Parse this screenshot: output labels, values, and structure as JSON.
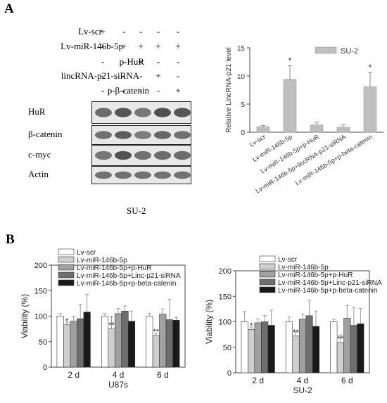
{
  "panel_a": {
    "letter": "A",
    "treatments": [
      {
        "label": "Lv-scr",
        "signs": [
          "+",
          "-",
          "-",
          "-",
          "-"
        ]
      },
      {
        "label": "Lv-miR-146b-5p",
        "signs": [
          "-",
          "+",
          "+",
          "+",
          "+"
        ]
      },
      {
        "label": "p-HuR",
        "signs": [
          "-",
          "-",
          "+",
          "-",
          "-"
        ]
      },
      {
        "label": "lincRNA-p21-siRNA",
        "signs": [
          "-",
          "-",
          "-",
          "+",
          "-"
        ]
      },
      {
        "label": "p-β-catenin",
        "signs": [
          "-",
          "-",
          "-",
          "-",
          "+"
        ]
      }
    ],
    "blots": [
      {
        "label": "HuR",
        "intensity": [
          0.55,
          0.75,
          0.45,
          0.8,
          0.75
        ]
      },
      {
        "label": "β-catenin",
        "intensity": [
          0.5,
          0.7,
          0.4,
          0.6,
          0.5
        ]
      },
      {
        "label": "c-myc",
        "intensity": [
          0.45,
          0.8,
          0.5,
          0.55,
          0.55
        ]
      },
      {
        "label": "Actin",
        "intensity": [
          0.5,
          0.5,
          0.5,
          0.5,
          0.5
        ]
      }
    ],
    "cell_line": "SU-2"
  },
  "panel_b": {
    "letter": "B"
  },
  "chart_data": [
    {
      "type": "bar",
      "id": "lincrna-p21",
      "title": "",
      "ylabel": "Relative LincRNA-p21 level",
      "ylim": [
        0,
        15
      ],
      "yticks": [
        "0",
        "5",
        "10",
        "15"
      ],
      "categories": [
        "Lv-scr",
        "Lv-miR-146b-5p",
        "Lv-miR-146b-5p+p-HuR",
        "Lv-miR-146b-5p+lincRNA-p21-siRNA",
        "Lv-miR-146b-5p+p-beta-catenin"
      ],
      "series": [
        {
          "name": "SU-2",
          "values": [
            1.0,
            9.4,
            1.3,
            0.9,
            8.1
          ],
          "errors": [
            0.2,
            2.4,
            0.5,
            0.4,
            2.5
          ]
        }
      ],
      "annotations": [
        "",
        "*",
        "",
        "",
        "*"
      ],
      "legend": "top-right"
    },
    {
      "type": "bar",
      "id": "viability-u87s",
      "title": "",
      "xlabel": "U87s",
      "ylabel": "Viability (%)",
      "ylim": [
        0,
        200
      ],
      "yticks": [
        "0",
        "50",
        "100",
        "150",
        "200"
      ],
      "categories": [
        "2 d",
        "4 d",
        "6 d"
      ],
      "series": [
        {
          "name": "Lv-scr",
          "values": [
            100,
            100,
            100
          ],
          "errors": [
            5,
            5,
            5
          ]
        },
        {
          "name": "Lv-miR-146b-5p",
          "values": [
            83,
            75,
            62
          ],
          "errors": [
            5,
            25,
            4
          ]
        },
        {
          "name": "Lv-miR-146b-5p+p-HuR",
          "values": [
            90,
            105,
            104
          ],
          "errors": [
            10,
            10,
            10
          ]
        },
        {
          "name": "Lv-miR-146b-5p+Linc-p21-siRNA",
          "values": [
            95,
            110,
            93
          ],
          "errors": [
            28,
            10,
            40
          ]
        },
        {
          "name": "Lv-miR-146b-5p+p-beta-catenin",
          "values": [
            108,
            90,
            92
          ],
          "errors": [
            35,
            20,
            5
          ]
        }
      ],
      "annotations": [
        [
          "",
          "*",
          "",
          "",
          ""
        ],
        [
          "",
          "**",
          "",
          "",
          ""
        ],
        [
          "",
          "**",
          "",
          "",
          ""
        ]
      ],
      "legend": "top-left"
    },
    {
      "type": "bar",
      "id": "viability-su2",
      "title": "",
      "xlabel": "SU-2",
      "ylabel": "Viability (%)",
      "ylim": [
        0,
        200
      ],
      "yticks": [
        "0",
        "50",
        "100",
        "150",
        "200"
      ],
      "categories": [
        "2 d",
        "4 d",
        "6 d"
      ],
      "series": [
        {
          "name": "Lv-scr",
          "values": [
            100,
            100,
            100
          ],
          "errors": [
            20,
            10,
            5
          ]
        },
        {
          "name": "Lv-miR-146b-5p",
          "values": [
            85,
            72,
            59
          ],
          "errors": [
            5,
            8,
            15
          ]
        },
        {
          "name": "Lv-miR-146b-5p+p-HuR",
          "values": [
            98,
            105,
            107
          ],
          "errors": [
            8,
            10,
            25
          ]
        },
        {
          "name": "Lv-miR-146b-5p+Linc-p21-siRNA",
          "values": [
            100,
            112,
            93
          ],
          "errors": [
            12,
            30,
            35
          ]
        },
        {
          "name": "Lv-miR-146b-5p+p-beta-catenin",
          "values": [
            93,
            91,
            96
          ],
          "errors": [
            30,
            30,
            30
          ]
        }
      ],
      "annotations": [
        [
          "",
          "*",
          "",
          "",
          ""
        ],
        [
          "",
          "**",
          "",
          "",
          ""
        ],
        [
          "",
          "**",
          "",
          "",
          ""
        ]
      ],
      "legend": "top-left"
    }
  ],
  "colors": {
    "bar_su2": "#bfbfbf",
    "series": [
      "#ffffff",
      "#cfcfcf",
      "#a0a0a0",
      "#6e6e6e",
      "#1a1a1a"
    ],
    "axis": "#444444"
  }
}
